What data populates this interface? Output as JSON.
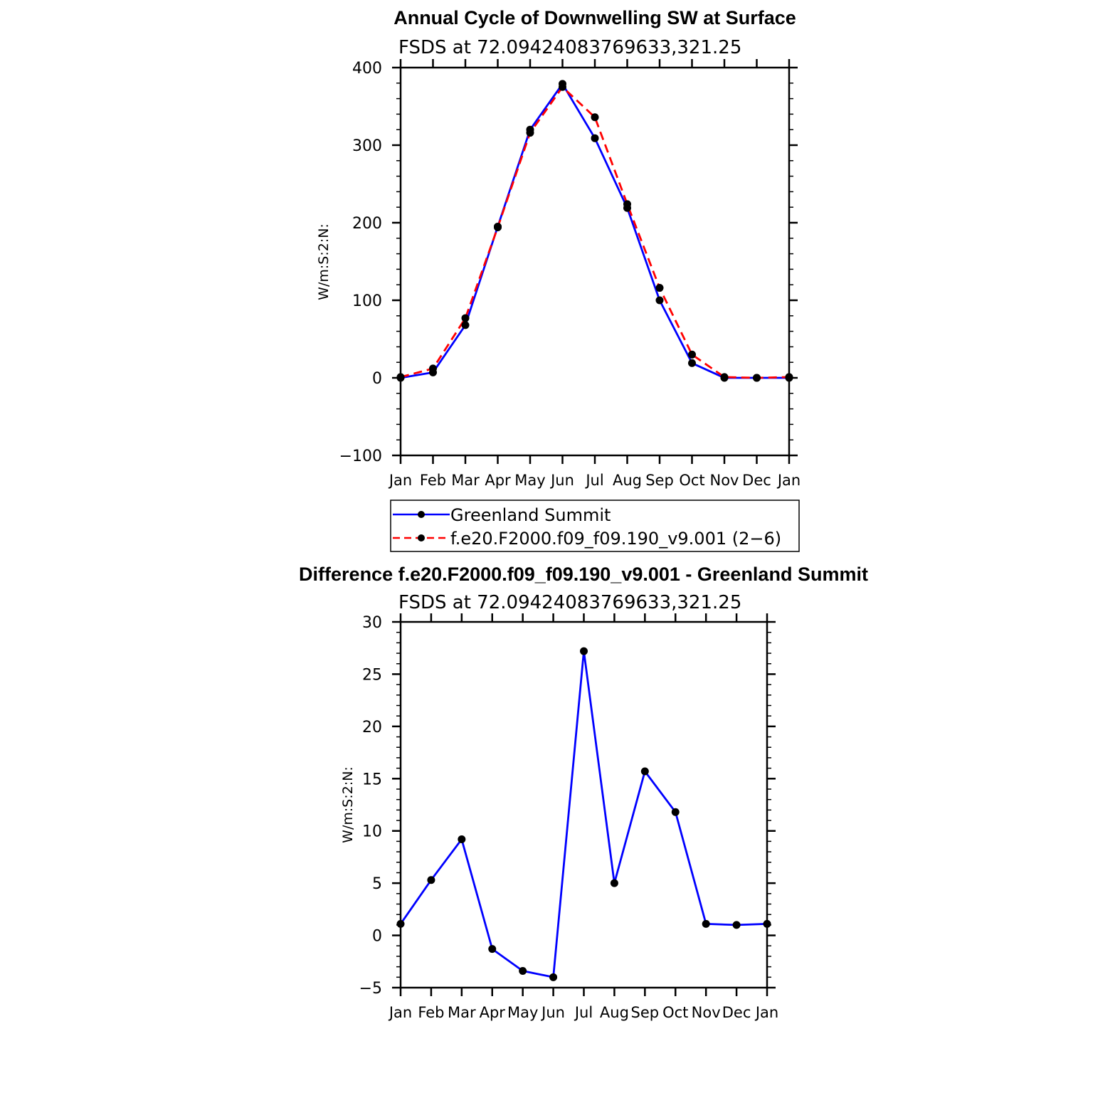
{
  "chart_data": [
    {
      "type": "line",
      "title": "Annual Cycle of Downwelling SW at Surface",
      "subtitle": "FSDS at 72.09424083769633,321.25",
      "xlabel": "",
      "ylabel": "W/m:S:2:N:",
      "categories": [
        "Jan",
        "Feb",
        "Mar",
        "Apr",
        "May",
        "Jun",
        "Jul",
        "Aug",
        "Sep",
        "Oct",
        "Nov",
        "Dec",
        "Jan"
      ],
      "ylim": [
        -100,
        400
      ],
      "yticks": [
        "400",
        "300",
        "200",
        "100",
        "0",
        "−100"
      ],
      "ytick_values": [
        400,
        300,
        200,
        100,
        0,
        -100
      ],
      "series": [
        {
          "name": "Greenland Summit",
          "color": "#0000ff",
          "dash": "solid",
          "values": [
            0,
            7,
            68,
            195,
            320,
            379,
            309,
            219,
            100,
            19,
            0,
            0,
            0
          ]
        },
        {
          "name": "f.e20.F2000.f09_f09.190_v9.001 (2−6)",
          "color": "#ff0000",
          "dash": "dashed",
          "values": [
            1,
            12,
            77,
            194,
            316,
            375,
            336,
            224,
            116,
            30,
            1,
            0,
            1
          ]
        }
      ]
    },
    {
      "type": "line",
      "title": "Difference f.e20.F2000.f09_f09.190_v9.001 - Greenland Summit",
      "subtitle": "FSDS at 72.09424083769633,321.25",
      "xlabel": "",
      "ylabel": "W/m:S:2:N:",
      "categories": [
        "Jan",
        "Feb",
        "Mar",
        "Apr",
        "May",
        "Jun",
        "Jul",
        "Aug",
        "Sep",
        "Oct",
        "Nov",
        "Dec",
        "Jan"
      ],
      "ylim": [
        -5,
        30
      ],
      "yticks": [
        "30",
        "25",
        "20",
        "15",
        "10",
        "5",
        "0",
        "−5"
      ],
      "ytick_values": [
        30,
        25,
        20,
        15,
        10,
        5,
        0,
        -5
      ],
      "series": [
        {
          "name": "Difference",
          "color": "#0000ff",
          "dash": "solid",
          "values": [
            1.1,
            5.3,
            9.2,
            -1.3,
            -3.4,
            -4.0,
            27.2,
            5.0,
            15.7,
            11.8,
            1.1,
            1.0,
            1.1
          ]
        }
      ]
    }
  ]
}
